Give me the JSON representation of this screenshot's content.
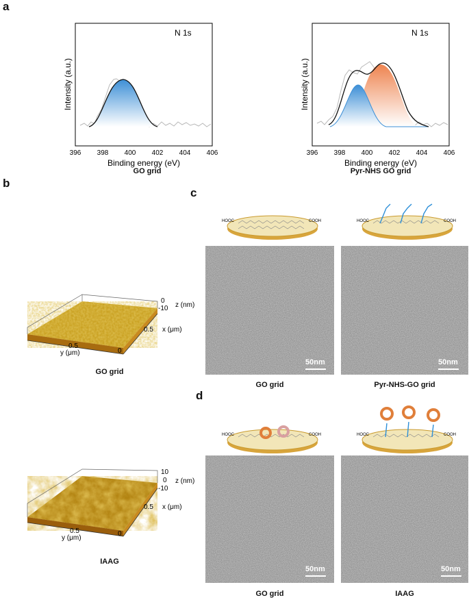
{
  "panel_labels": {
    "a": "a",
    "b": "b",
    "c": "c",
    "d": "d"
  },
  "panel_a": {
    "charts": [
      {
        "peak_label": "N 1s",
        "caption": "GO grid"
      },
      {
        "peak_label": "N 1s",
        "caption": "Pyr-NHS GO grid"
      }
    ]
  },
  "chart_data": [
    {
      "type": "line",
      "title": "GO grid",
      "xlabel": "Binding energy (eV)",
      "ylabel": "Intensity (a.u.)",
      "xlim": [
        396,
        406
      ],
      "xticks": [
        "396",
        "398",
        "400",
        "402",
        "404",
        "406"
      ],
      "annotation": "N 1s",
      "series": [
        {
          "component": "fit",
          "values_x": [
            397,
            398,
            398.5,
            399,
            399.5,
            400,
            400.5,
            401,
            401.5,
            402,
            403
          ],
          "values_y": [
            0.0,
            0.08,
            0.25,
            0.55,
            0.82,
            0.78,
            0.5,
            0.25,
            0.1,
            0.03,
            0.0
          ]
        },
        {
          "component": "fit-peak",
          "center": 399.5,
          "color": "#4a9ad9"
        }
      ]
    },
    {
      "type": "line",
      "title": "Pyr-NHS GO grid",
      "xlabel": "Binding energy (eV)",
      "ylabel": "Intensity (a.u.)",
      "xlim": [
        396,
        406
      ],
      "xticks": [
        "396",
        "398",
        "400",
        "402",
        "404",
        "406"
      ],
      "annotation": "N 1s",
      "series": [
        {
          "component": "envelope",
          "values_x": [
            397,
            398,
            399,
            399.5,
            400,
            400.5,
            401,
            401.5,
            402,
            403,
            404
          ],
          "values_y": [
            0.02,
            0.1,
            0.55,
            0.75,
            0.72,
            0.8,
            0.85,
            0.78,
            0.55,
            0.2,
            0.05
          ]
        },
        {
          "component": "peak-1",
          "center": 399.3,
          "color": "#4a9ad9"
        },
        {
          "component": "peak-2",
          "center": 400.9,
          "color": "#f0925e"
        }
      ]
    }
  ],
  "panel_b": {
    "afm": [
      {
        "z_ticks": [
          "0",
          "-10"
        ],
        "z_label": "z (nm)",
        "x_tick": "0.5",
        "x_label": "x (μm)",
        "y_tick": "0.5",
        "y_label": "y (μm)",
        "origin": "0",
        "caption": "GO grid"
      },
      {
        "z_ticks": [
          "10",
          "0",
          "-10"
        ],
        "z_label": "z (nm)",
        "x_tick": "0.5",
        "x_label": "x (μm)",
        "y_tick": "0.5",
        "y_label": "y (μm)",
        "origin": "0",
        "caption": "IAAG"
      }
    ]
  },
  "panel_c": {
    "images": [
      {
        "scale": "50nm",
        "caption": "GO grid",
        "label_left": "HOOC",
        "label_right": "COOH"
      },
      {
        "scale": "50nm",
        "caption": "Pyr-NHS-GO grid",
        "label_left": "HOOC",
        "label_right": "COOH"
      }
    ]
  },
  "panel_d": {
    "images": [
      {
        "scale": "50nm",
        "caption": "GO grid",
        "label_left": "HOOC",
        "label_right": "COOH"
      },
      {
        "scale": "50nm",
        "caption": "IAAG",
        "label_left": "HOOC",
        "label_right": "COOH"
      }
    ]
  }
}
